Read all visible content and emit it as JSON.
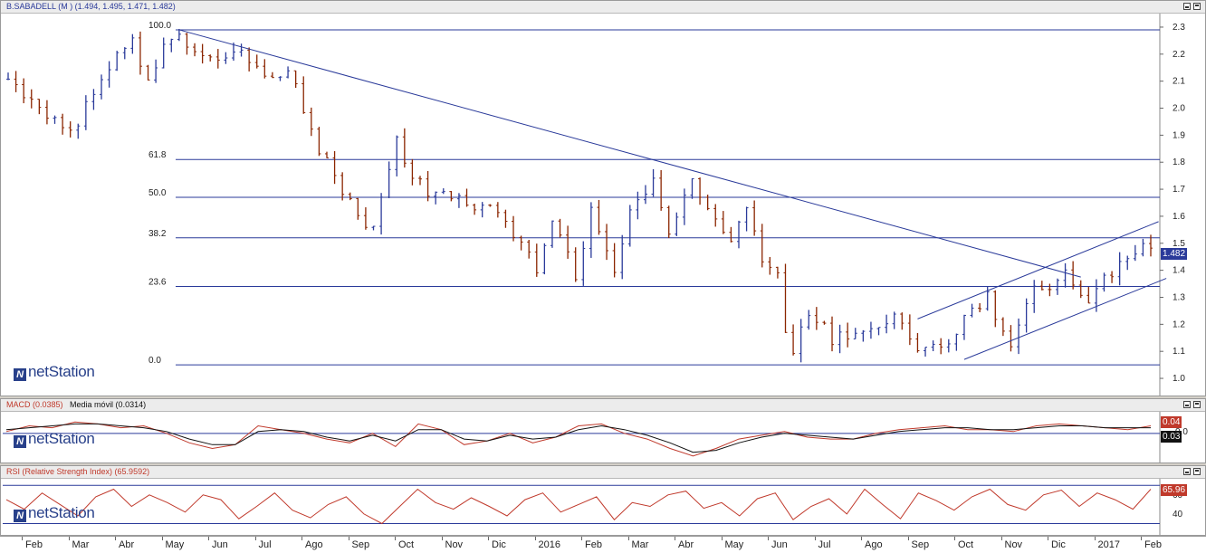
{
  "main_panel": {
    "title": "B.SABADELL (M ) (1.494, 1.495, 1.471, 1.482)",
    "last_price": "1.482",
    "logo": "netStation"
  },
  "macd_panel": {
    "title_macd": "MACD (0.0385)",
    "title_signal": "Media móvil (0.0314)",
    "tag_macd": "0.04",
    "tag_signal": "0.03",
    "tick_zero": "0.0",
    "logo": "netStation"
  },
  "rsi_panel": {
    "title": "RSI (Relative Strength Index) (65.9592)",
    "tag": "65.96",
    "logo": "netStation"
  },
  "colors": {
    "up": "#2a3a9a",
    "down": "#8b2500",
    "macd": "#c0392b",
    "signal": "#111111",
    "rsi": "#c0392b",
    "trend": "#2a3a9a"
  },
  "chart_data": [
    {
      "type": "bar",
      "title": "B.SABADELL (M ) (1.494, 1.495, 1.471, 1.482)",
      "ylim": [
        0.97,
        2.33
      ],
      "yticks": [
        "1.0",
        "1.1",
        "1.2",
        "1.3",
        "1.4",
        "1.5",
        "1.6",
        "1.7",
        "1.8",
        "1.9",
        "2.0",
        "2.1",
        "2.2",
        "2.3"
      ],
      "xticks": [
        "Feb",
        "Mar",
        "Abr",
        "May",
        "Jun",
        "Jul",
        "Ago",
        "Sep",
        "Oct",
        "Nov",
        "Dic",
        "2016",
        "Feb",
        "Mar",
        "Abr",
        "May",
        "Jun",
        "Jul",
        "Ago",
        "Sep",
        "Oct",
        "Nov",
        "Dic",
        "2017",
        "Feb"
      ],
      "fibonacci": [
        {
          "label": "100.0",
          "value": 2.29
        },
        {
          "label": "61.8",
          "value": 1.81
        },
        {
          "label": "50.0",
          "value": 1.67
        },
        {
          "label": "38.2",
          "value": 1.52
        },
        {
          "label": "23.6",
          "value": 1.34
        },
        {
          "label": "0.0",
          "value": 1.05
        }
      ],
      "price_path": [
        [
          0,
          2.1
        ],
        [
          4,
          2.0
        ],
        [
          8,
          1.9
        ],
        [
          12,
          2.12
        ],
        [
          16,
          2.25
        ],
        [
          18,
          2.1
        ],
        [
          20,
          2.22
        ],
        [
          22,
          2.28
        ],
        [
          24,
          2.2
        ],
        [
          26,
          2.18
        ],
        [
          30,
          2.2
        ],
        [
          33,
          2.1
        ],
        [
          36,
          2.15
        ],
        [
          38,
          2.0
        ],
        [
          40,
          1.85
        ],
        [
          44,
          1.65
        ],
        [
          47,
          1.55
        ],
        [
          50,
          1.88
        ],
        [
          52,
          1.75
        ],
        [
          54,
          1.68
        ],
        [
          58,
          1.66
        ],
        [
          62,
          1.62
        ],
        [
          66,
          1.52
        ],
        [
          68,
          1.38
        ],
        [
          70,
          1.6
        ],
        [
          73,
          1.38
        ],
        [
          75,
          1.62
        ],
        [
          78,
          1.38
        ],
        [
          80,
          1.62
        ],
        [
          83,
          1.72
        ],
        [
          85,
          1.52
        ],
        [
          88,
          1.75
        ],
        [
          90,
          1.62
        ],
        [
          93,
          1.52
        ],
        [
          95,
          1.62
        ],
        [
          97,
          1.45
        ],
        [
          99,
          1.38
        ],
        [
          99.5,
          1.2
        ],
        [
          101,
          1.1
        ],
        [
          103,
          1.25
        ],
        [
          106,
          1.15
        ],
        [
          110,
          1.18
        ],
        [
          114,
          1.22
        ],
        [
          117,
          1.12
        ],
        [
          120,
          1.1
        ],
        [
          123,
          1.22
        ],
        [
          126,
          1.3
        ],
        [
          129,
          1.12
        ],
        [
          132,
          1.32
        ],
        [
          136,
          1.38
        ],
        [
          139,
          1.3
        ],
        [
          141,
          1.36
        ],
        [
          143,
          1.42
        ],
        [
          146,
          1.5
        ],
        [
          147,
          1.48
        ]
      ],
      "price_last": 1.482
    },
    {
      "type": "line",
      "title": "MACD (0.0385)",
      "series": [
        {
          "name": "MACD (0.0385)",
          "values": [
            0.01,
            0.04,
            0.03,
            0.06,
            0.05,
            0.03,
            0.04,
            0.0,
            -0.05,
            -0.08,
            -0.06,
            0.04,
            0.02,
            0.0,
            -0.03,
            -0.05,
            0.0,
            -0.07,
            0.05,
            0.02,
            -0.06,
            -0.04,
            0.0,
            -0.05,
            -0.02,
            0.04,
            0.05,
            0.0,
            -0.03,
            -0.08,
            -0.12,
            -0.08,
            -0.03,
            -0.01,
            0.01,
            -0.02,
            -0.03,
            -0.03,
            0.0,
            0.02,
            0.03,
            0.04,
            0.02,
            0.02,
            0.01,
            0.04,
            0.05,
            0.04,
            0.03,
            0.02,
            0.04
          ]
        },
        {
          "name": "Media móvil (0.0314)",
          "values": [
            0.02,
            0.03,
            0.04,
            0.05,
            0.05,
            0.04,
            0.03,
            0.01,
            -0.03,
            -0.06,
            -0.06,
            0.01,
            0.02,
            0.01,
            -0.02,
            -0.04,
            -0.01,
            -0.04,
            0.02,
            0.02,
            -0.03,
            -0.04,
            -0.01,
            -0.03,
            -0.02,
            0.02,
            0.04,
            0.02,
            -0.01,
            -0.05,
            -0.1,
            -0.09,
            -0.05,
            -0.02,
            0.0,
            -0.01,
            -0.02,
            -0.03,
            -0.01,
            0.01,
            0.02,
            0.03,
            0.03,
            0.02,
            0.02,
            0.03,
            0.04,
            0.04,
            0.03,
            0.03,
            0.03
          ]
        }
      ],
      "ylim": [
        -0.14,
        0.1
      ]
    },
    {
      "type": "line",
      "title": "RSI (Relative Strength Index) (65.9592)",
      "series": [
        {
          "name": "RSI (Relative Strength Index) (65.9592)",
          "values": [
            55,
            45,
            62,
            50,
            38,
            58,
            66,
            48,
            60,
            52,
            42,
            60,
            55,
            35,
            48,
            62,
            44,
            36,
            50,
            58,
            40,
            30,
            48,
            66,
            52,
            45,
            57,
            48,
            38,
            55,
            62,
            42,
            50,
            58,
            34,
            52,
            48,
            60,
            64,
            46,
            52,
            38,
            56,
            62,
            34,
            48,
            56,
            40,
            66,
            50,
            35,
            62,
            54,
            44,
            58,
            66,
            50,
            44,
            60,
            65,
            48,
            62,
            55,
            45,
            66
          ]
        }
      ],
      "ylim": [
        20,
        75
      ],
      "yticks": [
        "40",
        "60"
      ],
      "levels": [
        30,
        70
      ]
    }
  ]
}
